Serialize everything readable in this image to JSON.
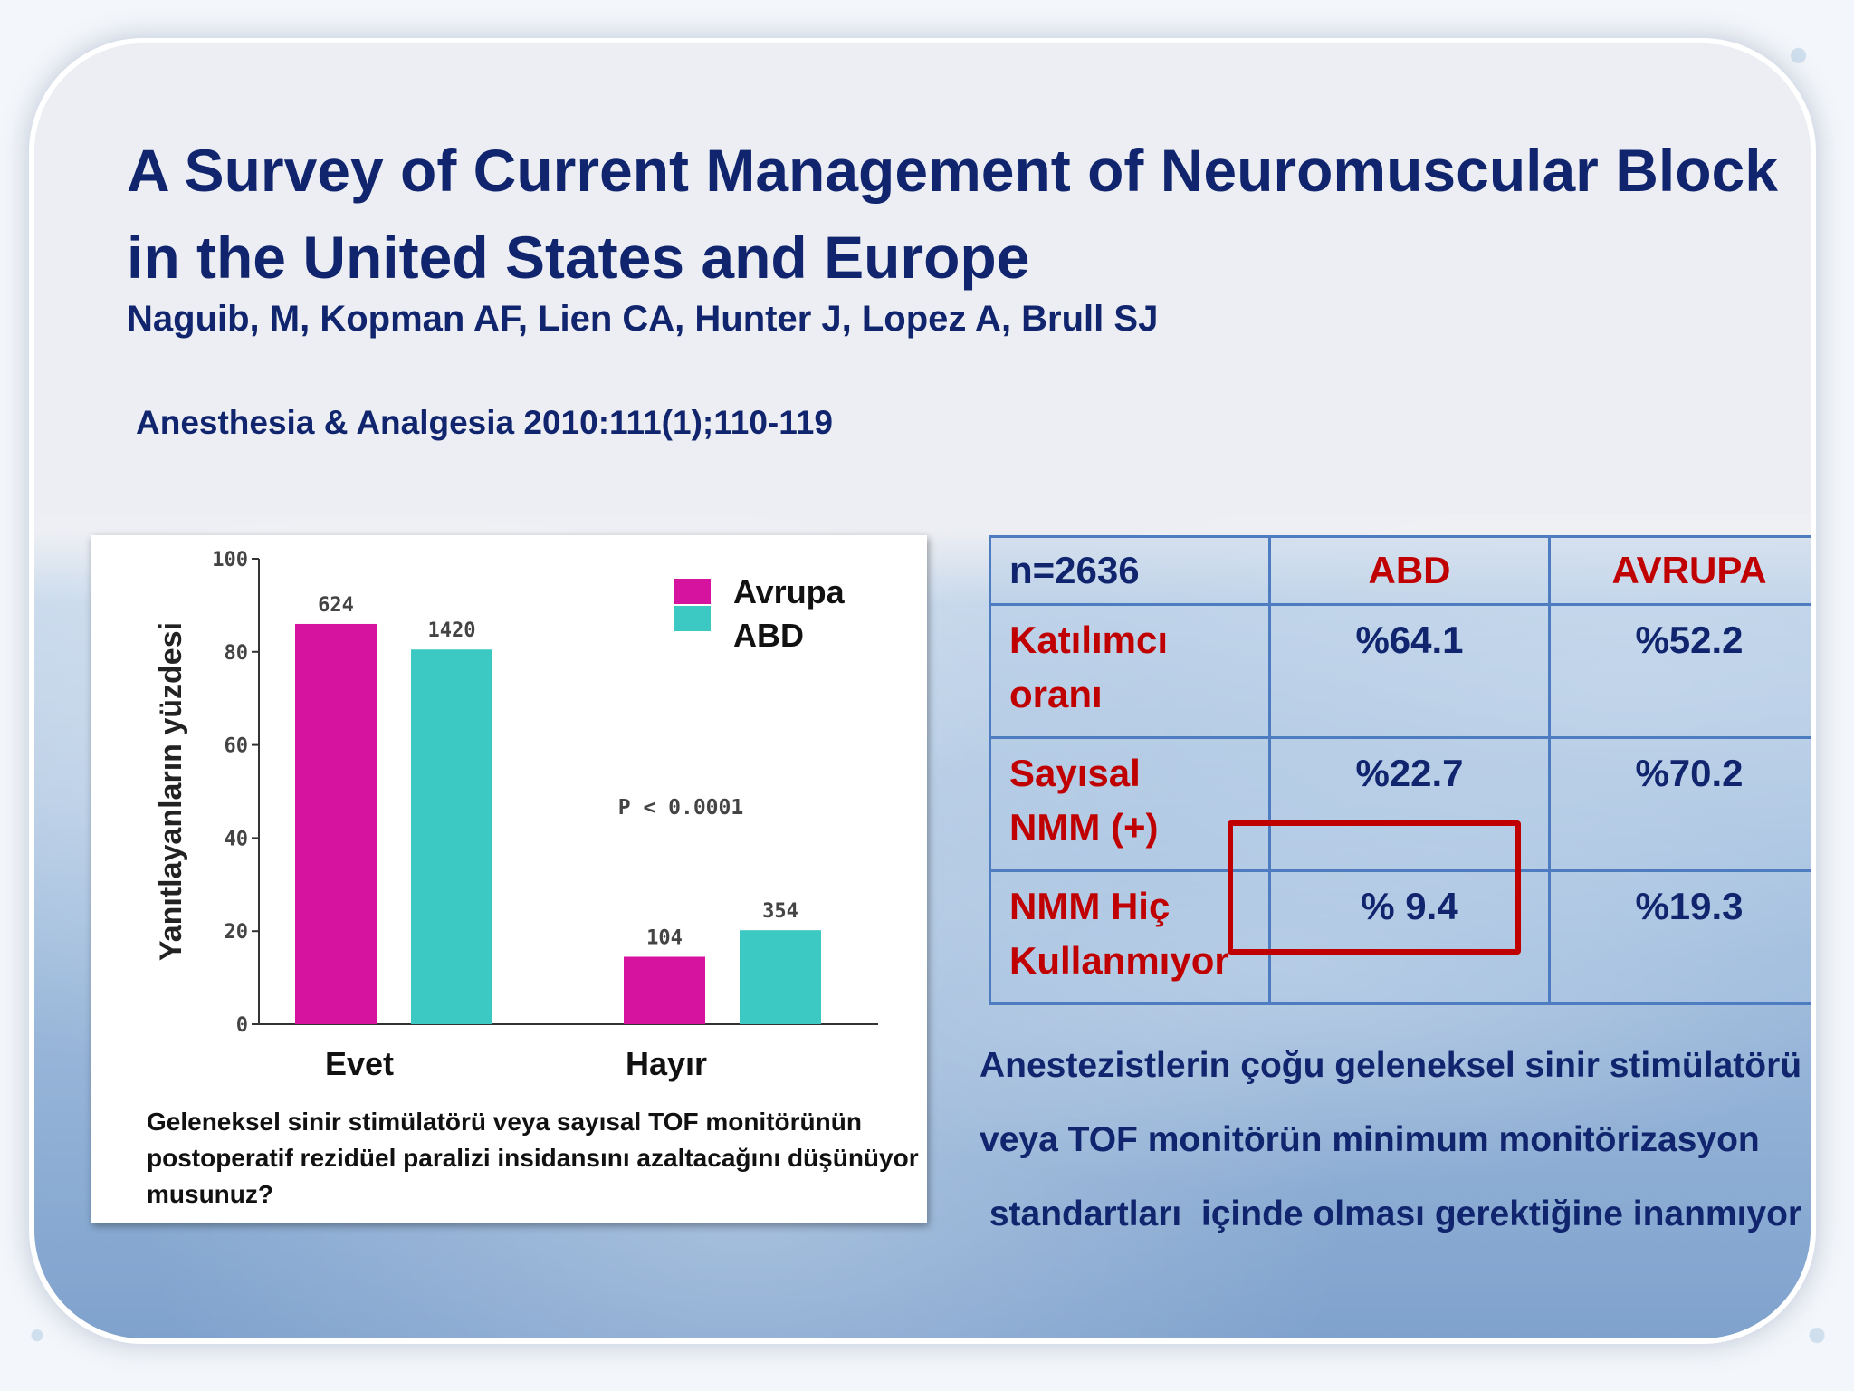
{
  "slide": {
    "title": "A Survey of Current Management of Neuromuscular Block in the United States and Europe",
    "authors": "Naguib, M, Kopman AF, Lien CA, Hunter J, Lopez A, Brull SJ",
    "journal": "Anesthesia & Analgesia 2010:111(1);110-119",
    "question": "Geleneksel sinir stimülatörü veya sayısal TOF monitörünün postoperatif rezidüel paralizi insidansını azaltacağını düşünüyor musunuz?",
    "conclusion_lines": [
      "Anestezistlerin çoğu geleneksel sinir stimülatörü",
      "veya TOF monitörün minimum monitörizasyon",
      " standartları  içinde olması gerektiğine inanmıyor"
    ]
  },
  "colors": {
    "avrupa": "#d6139f",
    "abd": "#3cc9c3",
    "title_blue": "#10256e",
    "red": "#c00000",
    "table_border": "#4d7cc0"
  },
  "chart_data": {
    "type": "bar",
    "categories": [
      "Evet",
      "Hayır"
    ],
    "series": [
      {
        "name": "Avrupa",
        "values": [
          86,
          14.5
        ],
        "labels": [
          "624",
          "104"
        ]
      },
      {
        "name": "ABD",
        "values": [
          80.5,
          20.2
        ],
        "labels": [
          "1420",
          "354"
        ]
      }
    ],
    "ylabel": "Yanıtlayanların yüzdesi",
    "xlabel": "",
    "ylim": [
      0,
      100
    ],
    "yticks": [
      "0",
      "20",
      "40",
      "60",
      "80",
      "100"
    ],
    "annotation": "P < 0.0001",
    "legend_position": "top-right"
  },
  "table": {
    "header": [
      "n=2636",
      "ABD",
      "AVRUPA"
    ],
    "rows": [
      {
        "label_lines": [
          "Katılımcı",
          "oranı"
        ],
        "abd": "%64.1",
        "avrupa": "%52.2"
      },
      {
        "label_lines": [
          "Sayısal",
          "NMM (+)"
        ],
        "abd": "%22.7",
        "avrupa": "%70.2"
      },
      {
        "label_lines": [
          "NMM Hiç",
          "Kullanmıyor"
        ],
        "abd": "% 9.4",
        "avrupa": "%19.3"
      }
    ]
  }
}
